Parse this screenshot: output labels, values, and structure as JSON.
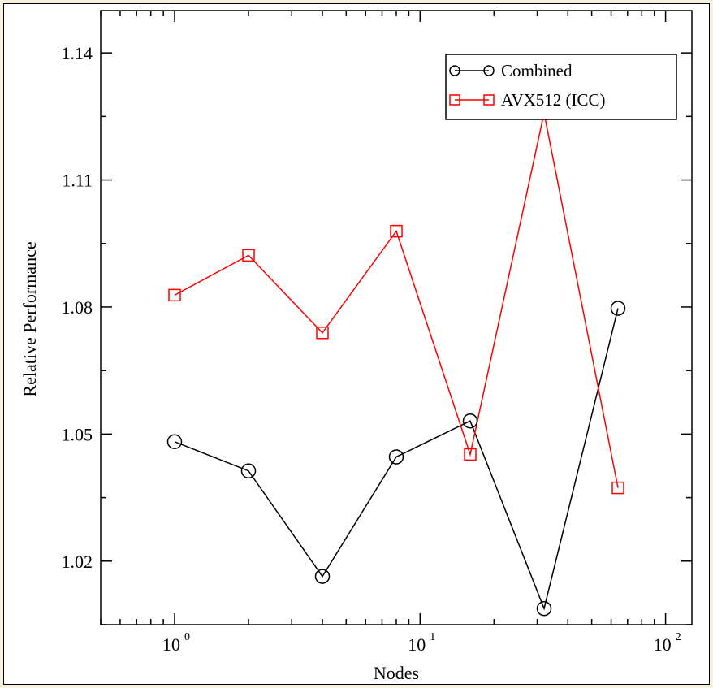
{
  "chart_data": {
    "type": "line",
    "xlabel": "Nodes",
    "ylabel": "Relative Performance",
    "xscale": "log",
    "xlim": [
      0.5,
      128
    ],
    "ylim": [
      1.005,
      1.15
    ],
    "x_ticks": [
      {
        "value": 1,
        "base": "10",
        "exp": "0"
      },
      {
        "value": 10,
        "base": "10",
        "exp": "1"
      },
      {
        "value": 100,
        "base": "10",
        "exp": "2"
      }
    ],
    "y_ticks": [
      {
        "value": 1.02,
        "label": "1.02"
      },
      {
        "value": 1.05,
        "label": "1.05"
      },
      {
        "value": 1.08,
        "label": "1.08"
      },
      {
        "value": 1.11,
        "label": "1.11"
      },
      {
        "value": 1.14,
        "label": "1.14"
      }
    ],
    "x": [
      1,
      2,
      4,
      8,
      16,
      32,
      64
    ],
    "series": [
      {
        "name": "Combined",
        "color": "#000000",
        "marker": "circle",
        "values": [
          1.0482,
          1.0413,
          1.0164,
          1.0446,
          1.0531,
          1.0088,
          1.0797
        ]
      },
      {
        "name": "AVX512 (ICC)",
        "color": "#ff0000",
        "marker": "square",
        "values": [
          1.0828,
          1.0922,
          1.0739,
          1.0979,
          1.0452,
          1.1258,
          1.0373
        ]
      }
    ],
    "legend": "top-right",
    "grid": false
  }
}
